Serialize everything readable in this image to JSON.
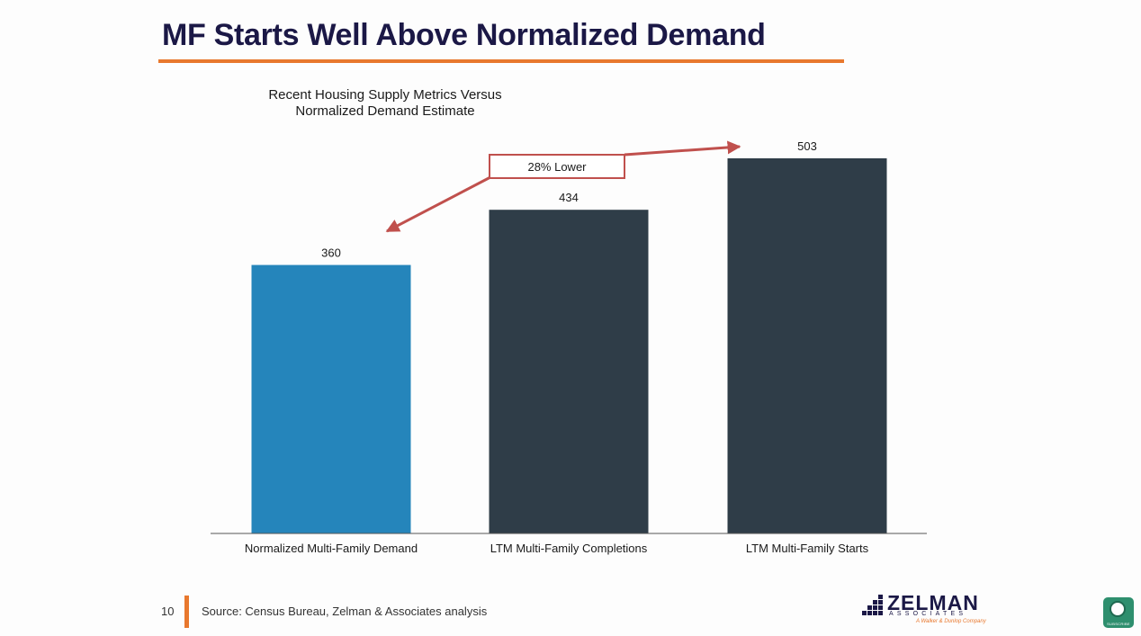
{
  "slide": {
    "title": "MF Starts Well Above Normalized Demand",
    "page_number": "10",
    "source": "Source: Census Bureau, Zelman & Associates analysis"
  },
  "chart_data": {
    "type": "bar",
    "title_lines": [
      "Recent Housing Supply Metrics Versus",
      "Normalized Demand Estimate"
    ],
    "categories": [
      "Normalized Multi-Family Demand",
      "LTM Multi-Family Completions",
      "LTM Multi-Family Starts"
    ],
    "values": [
      360,
      434,
      503
    ],
    "data_labels": [
      "360",
      "434",
      "503"
    ],
    "bar_colors": [
      "#2585bb",
      "#2f3d48",
      "#2f3d48"
    ],
    "ylim": [
      0,
      503
    ],
    "annotation": {
      "text": "28% Lower",
      "color": "#c0504d"
    },
    "accent_color": "#e8782e",
    "title_color": "#1b1846"
  },
  "logo": {
    "name": "ZELMAN",
    "sub": "ASSOCIATES",
    "tagline": "A Walker & Dunlop Company"
  },
  "subscribe": {
    "label": "SUBSCRIBE"
  }
}
